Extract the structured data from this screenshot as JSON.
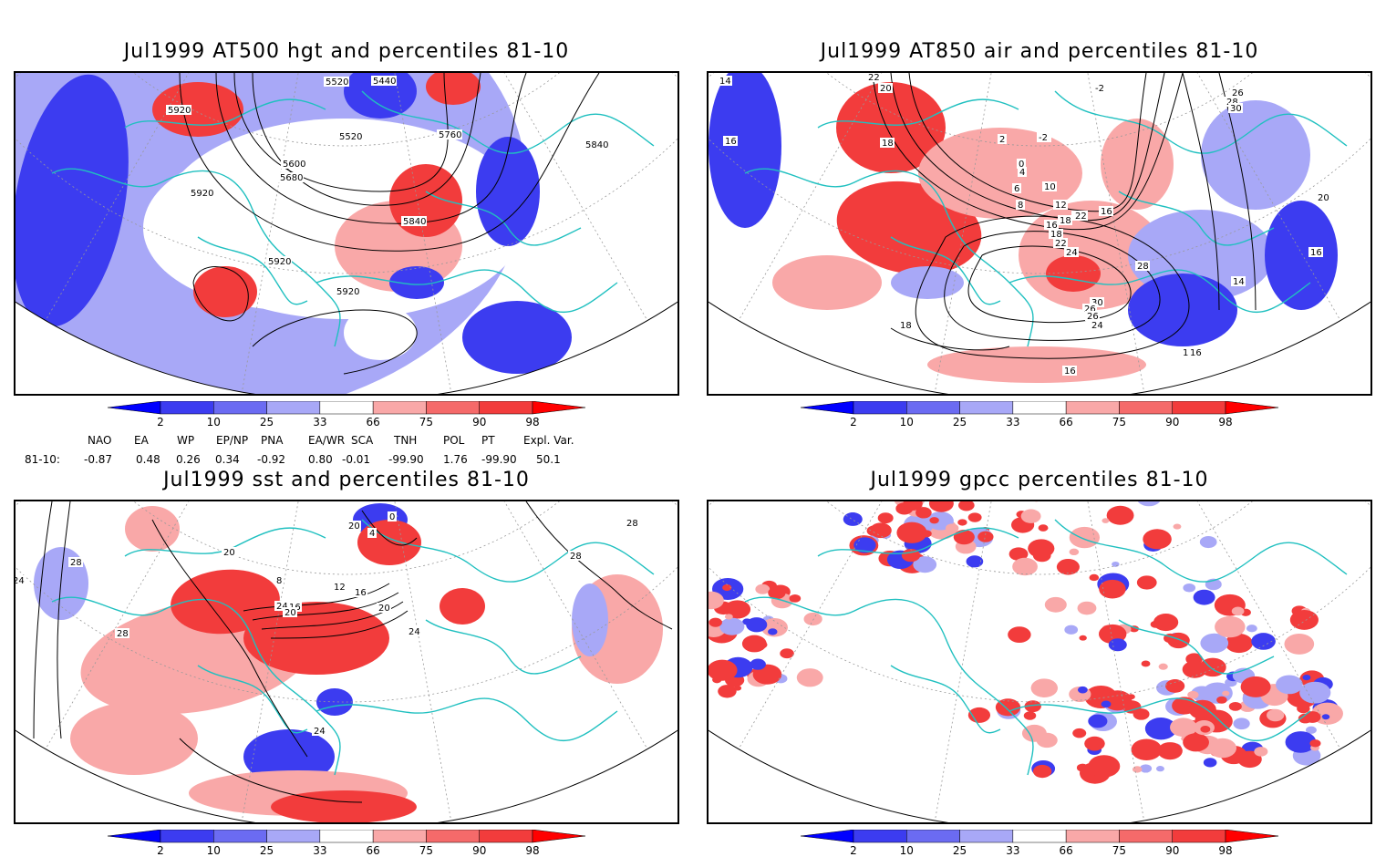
{
  "panels": [
    {
      "id": "hgt",
      "title": "Jul1999 AT500 hgt and percentiles 81-10",
      "contour_labels": [
        "5920",
        "5520",
        "5440",
        "5520",
        "5760",
        "5600",
        "5680",
        "5840",
        "5920",
        "5840",
        "5920",
        "5920"
      ]
    },
    {
      "id": "air",
      "title": "Jul1999 AT850 air and percentiles 81-10",
      "contour_labels": [
        "14",
        "22",
        "20",
        "-2",
        "26",
        "28",
        "30",
        "16",
        "18",
        "2",
        "-2",
        "0",
        "4",
        "6",
        "8",
        "10",
        "12",
        "14",
        "16",
        "18",
        "16",
        "18",
        "22",
        "24",
        "28",
        "30",
        "26",
        "26",
        "24",
        "22",
        "20",
        "18",
        "16",
        "16",
        "14",
        "16",
        "16"
      ]
    },
    {
      "id": "sst",
      "title": "Jul1999 sst and percentiles 81-10",
      "contour_labels": [
        "20",
        "0",
        "4",
        "20",
        "28",
        "24",
        "28",
        "8",
        "12",
        "16",
        "20",
        "24",
        "28",
        "24",
        "28",
        "16",
        "20",
        "24"
      ]
    },
    {
      "id": "gpcc",
      "title": "Jul1999 gpcc percentiles 81-10",
      "contour_labels": []
    }
  ],
  "colorbar": {
    "labels": [
      "2",
      "10",
      "25",
      "33",
      "66",
      "75",
      "90",
      "98"
    ],
    "colors": {
      "c1": "#0000ff",
      "c2": "#3c3cf0",
      "c3": "#6b6bf2",
      "c4": "#a8a8f7",
      "c5": "#ffffff",
      "c6": "#f9a8a8",
      "c7": "#f56a6a",
      "c8": "#f23c3c",
      "c9": "#ff0000"
    }
  },
  "teleconnections": {
    "headers": [
      "NAO",
      "EA",
      "WP",
      "EP/NP",
      "PNA",
      "EA/WR",
      "SCA",
      "TNH",
      "POL",
      "PT",
      "Expl. Var."
    ],
    "row_label": "81-10:",
    "values": [
      "-0.87",
      "0.48",
      "0.26",
      "0.34",
      "-0.92",
      "0.80",
      "-0.01",
      "-99.90",
      "1.76",
      "-99.90",
      "50.1"
    ]
  },
  "map_colors": {
    "coast": "#20c0c0",
    "blue": "#3c3cf0",
    "lightblue": "#a8a8f7",
    "red": "#f23c3c",
    "lightred": "#f9a8a8",
    "contour": "#000000",
    "grid": "#999999"
  }
}
